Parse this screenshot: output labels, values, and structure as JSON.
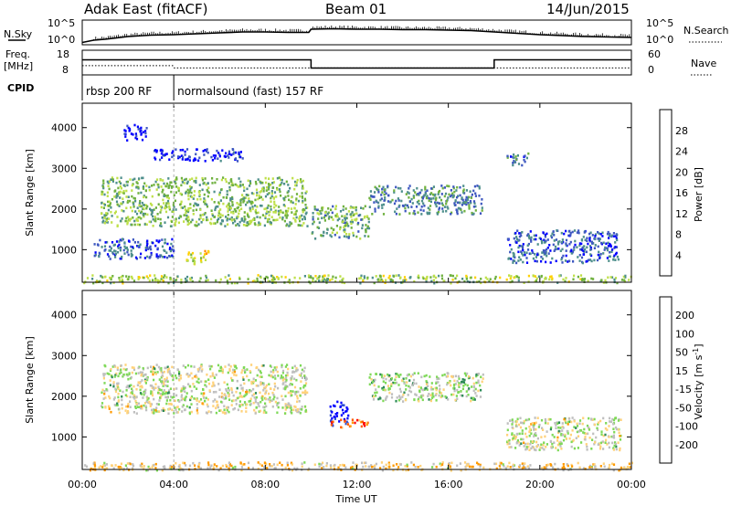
{
  "header": {
    "station": "Adak East (fitACF)",
    "beam": "Beam 01",
    "date": "14/Jun/2015"
  },
  "chart_data": [
    {
      "name": "noise-panel",
      "type": "line",
      "left_label": "N.Sky",
      "right_label": "N.Search",
      "y_ticks_left": [
        "10^5",
        "10^0"
      ],
      "y_ticks_right": [
        "10^5",
        "10^0"
      ],
      "ylim_log10": [
        0,
        5
      ],
      "series": [
        {
          "x_hours": [
            0.0,
            0.5,
            1,
            2,
            3,
            4,
            5,
            6,
            7,
            8,
            9,
            9.9,
            10,
            11,
            12,
            13,
            14,
            15,
            16,
            17,
            18,
            19,
            20,
            21,
            22,
            23,
            24
          ],
          "log10_values": [
            0.3,
            0.8,
            1.0,
            1.6,
            1.9,
            2.0,
            2.2,
            2.4,
            2.6,
            2.6,
            2.5,
            2.5,
            3.2,
            3.3,
            3.2,
            3.2,
            3.1,
            3.1,
            3.0,
            2.9,
            2.6,
            2.3,
            2.0,
            1.8,
            1.6,
            1.5,
            1.4
          ]
        }
      ]
    },
    {
      "name": "frequency-panel",
      "type": "line",
      "left_label": "Freq.",
      "left_unit": "[MHz]",
      "right_label": "Nave",
      "y_ticks_left": [
        "18",
        "8"
      ],
      "y_ticks_right": [
        "60",
        "0"
      ],
      "ylim_left": [
        8,
        18
      ],
      "ylim_right": [
        0,
        60
      ],
      "series": [
        {
          "name": "frequency",
          "segments": [
            {
              "x_start": 0.0,
              "x_end": 4.0,
              "value": 14.2
            },
            {
              "x_start": 4.0,
              "x_end": 10.0,
              "value": 14.2
            },
            {
              "x_start": 10.0,
              "x_end": 18.0,
              "value": 10.6
            },
            {
              "x_start": 18.0,
              "x_end": 24.0,
              "value": 14.2
            }
          ]
        },
        {
          "name": "nave",
          "segments": [
            {
              "x_start": 0.0,
              "x_end": 4.0,
              "value": 22
            },
            {
              "x_start": 4.0,
              "x_end": 24.0,
              "value": 16
            }
          ]
        }
      ]
    },
    {
      "name": "cpid-panel",
      "type": "table",
      "left_label": "CPID",
      "entries": [
        {
          "x_start": 0.0,
          "x_end": 4.0,
          "text": "rbsp 200 RF"
        },
        {
          "x_start": 4.0,
          "x_end": 24.0,
          "text": "normalsound (fast) 157 RF"
        }
      ]
    },
    {
      "name": "power-panel",
      "type": "heatmap",
      "ylabel": "Slant Range [km]",
      "y_ticks": [
        1000,
        2000,
        3000,
        4000
      ],
      "ylim": [
        200,
        4600
      ],
      "colorbar": {
        "title": "Power [dB]",
        "ticks": [
          "28",
          "24",
          "20",
          "16",
          "12",
          "8",
          "4"
        ],
        "colors": [
          "#0000ff",
          "#3e57c0",
          "#4e8f8c",
          "#6fb13f",
          "#bfe04a",
          "#ffd000",
          "#ff8a00",
          "#ff0000"
        ]
      },
      "regions": [
        {
          "x": [
            0.8,
            9.8
          ],
          "y": [
            1600,
            2800
          ],
          "level": 0.45
        },
        {
          "x": [
            3.0,
            7.0
          ],
          "y": [
            3200,
            3500
          ],
          "level": 0.1
        },
        {
          "x": [
            1.8,
            2.8
          ],
          "y": [
            3700,
            4100
          ],
          "level": 0.05
        },
        {
          "x": [
            0.5,
            4.0
          ],
          "y": [
            800,
            1300
          ],
          "level": 0.2
        },
        {
          "x": [
            4.5,
            5.5
          ],
          "y": [
            650,
            1000
          ],
          "level": 0.6
        },
        {
          "x": [
            10.0,
            12.5
          ],
          "y": [
            1300,
            2100
          ],
          "level": 0.4
        },
        {
          "x": [
            12.5,
            17.5
          ],
          "y": [
            1900,
            2600
          ],
          "level": 0.3
        },
        {
          "x": [
            18.5,
            19.5
          ],
          "y": [
            3100,
            3400
          ],
          "level": 0.25
        },
        {
          "x": [
            18.5,
            23.5
          ],
          "y": [
            700,
            1500
          ],
          "level": 0.2
        },
        {
          "x": [
            0.0,
            24.0
          ],
          "y": [
            200,
            400
          ],
          "level": 0.5
        }
      ]
    },
    {
      "name": "velocity-panel",
      "type": "heatmap",
      "ylabel": "Slant Range [km]",
      "y_ticks": [
        1000,
        2000,
        3000,
        4000
      ],
      "ylim": [
        200,
        4600
      ],
      "xlabel": "Time UT",
      "x_ticks": [
        "00:00",
        "04:00",
        "08:00",
        "12:00",
        "16:00",
        "20:00",
        "00:00"
      ],
      "colorbar": {
        "title": "Velocity [m s",
        "title_superscript": "-1",
        "title_suffix": "]",
        "ticks": [
          "200",
          "100",
          "50",
          "15",
          "-15",
          "-50",
          "-100",
          "-200"
        ],
        "colors": [
          "#0000ff",
          "#3050d0",
          "#2e8b57",
          "#7ed957",
          "#bfbfbf",
          "#ffd27a",
          "#ff9a00",
          "#ff5a00",
          "#ff0000"
        ]
      },
      "regions": [
        {
          "x": [
            0.8,
            9.8
          ],
          "y": [
            1600,
            2800
          ],
          "level": 0.5
        },
        {
          "x": [
            10.8,
            11.6
          ],
          "y": [
            1300,
            1900
          ],
          "level": 0.05
        },
        {
          "x": [
            10.8,
            12.5
          ],
          "y": [
            1250,
            1450
          ],
          "level": 0.8
        },
        {
          "x": [
            12.5,
            17.5
          ],
          "y": [
            1900,
            2600
          ],
          "level": 0.45
        },
        {
          "x": [
            18.5,
            23.5
          ],
          "y": [
            700,
            1500
          ],
          "level": 0.5
        },
        {
          "x": [
            0.0,
            24.0
          ],
          "y": [
            200,
            400
          ],
          "level": 0.6
        }
      ]
    }
  ]
}
